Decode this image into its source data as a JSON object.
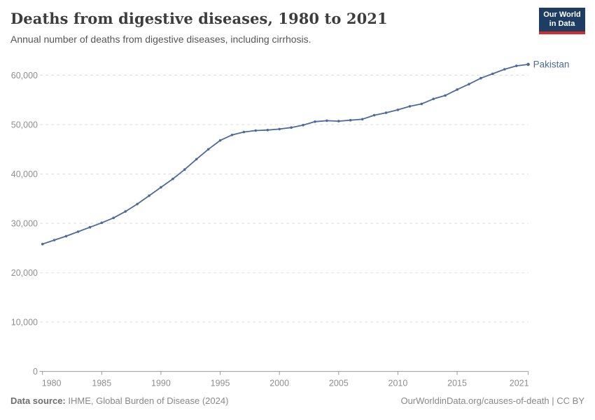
{
  "header": {
    "title": "Deaths from digestive diseases, 1980 to 2021",
    "subtitle": "Annual number of deaths from digestive diseases, including cirrhosis.",
    "logo": {
      "line1": "Our World",
      "line2": "in Data"
    }
  },
  "chart_data": {
    "type": "line",
    "title": "Deaths from digestive diseases, 1980 to 2021",
    "x": [
      1980,
      1981,
      1982,
      1983,
      1984,
      1985,
      1986,
      1987,
      1988,
      1989,
      1990,
      1991,
      1992,
      1993,
      1994,
      1995,
      1996,
      1997,
      1998,
      1999,
      2000,
      2001,
      2002,
      2003,
      2004,
      2005,
      2006,
      2007,
      2008,
      2009,
      2010,
      2011,
      2012,
      2013,
      2014,
      2015,
      2016,
      2017,
      2018,
      2019,
      2020,
      2021
    ],
    "series": [
      {
        "name": "Pakistan",
        "color": "#4C6A9C",
        "values": [
          25800,
          26600,
          27400,
          28300,
          29200,
          30100,
          31100,
          32400,
          33900,
          35600,
          37300,
          39000,
          40900,
          43000,
          45000,
          46800,
          47900,
          48500,
          48800,
          48900,
          49100,
          49400,
          49900,
          50600,
          50800,
          50700,
          50900,
          51100,
          51900,
          52400,
          53000,
          53700,
          54200,
          55200,
          55900,
          57100,
          58200,
          59400,
          60300,
          61200,
          61900,
          62200
        ]
      }
    ],
    "xlabel": "",
    "ylabel": "",
    "ylim": [
      0,
      60000
    ],
    "xlim": [
      1980,
      2021
    ],
    "yticks": [
      0,
      10000,
      20000,
      30000,
      40000,
      50000,
      60000
    ],
    "ytick_labels": [
      "0",
      "10,000",
      "20,000",
      "30,000",
      "40,000",
      "50,000",
      "60,000"
    ],
    "xticks": [
      1980,
      1985,
      1990,
      1995,
      2000,
      2005,
      2010,
      2015,
      2021
    ],
    "xtick_labels": [
      "1980",
      "1985",
      "1990",
      "1995",
      "2000",
      "2005",
      "2010",
      "2015",
      "2021"
    ],
    "legend_position": "end-of-line-label",
    "grid": "horizontal-dashed",
    "colors": {
      "grid": "#dedede",
      "axis": "#999999",
      "tick_label": "#8f8f8f",
      "line": "#4C6A9C"
    }
  },
  "footer": {
    "source_label": "Data source:",
    "source_text": " IHME, Global Burden of Disease (2024)",
    "link_text": "OurWorldinData.org/causes-of-death | CC BY"
  }
}
